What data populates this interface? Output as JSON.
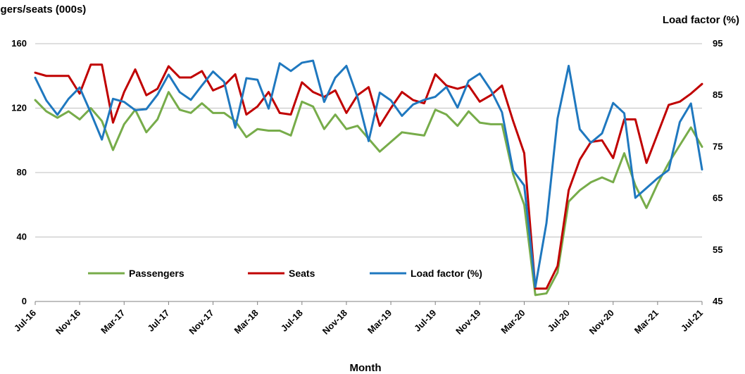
{
  "chart_data": {
    "type": "line",
    "xlabel": "Month",
    "ylabel_left": "Passengers/seats (000s)",
    "ylabel_right": "Load factor (%)",
    "ylim_left": [
      0,
      160
    ],
    "ylim_right": [
      45,
      95
    ],
    "yticks_left": [
      0,
      40,
      80,
      120,
      160
    ],
    "yticks_right": [
      45,
      55,
      65,
      75,
      85,
      95
    ],
    "grid": "horizontal",
    "legend_position": "bottom-left",
    "x": [
      "Jul-16",
      "Aug-16",
      "Sep-16",
      "Oct-16",
      "Nov-16",
      "Dec-16",
      "Jan-17",
      "Feb-17",
      "Mar-17",
      "Apr-17",
      "May-17",
      "Jun-17",
      "Jul-17",
      "Aug-17",
      "Sep-17",
      "Oct-17",
      "Nov-17",
      "Dec-17",
      "Jan-18",
      "Feb-18",
      "Mar-18",
      "Apr-18",
      "May-18",
      "Jun-18",
      "Jul-18",
      "Aug-18",
      "Sep-18",
      "Oct-18",
      "Nov-18",
      "Dec-18",
      "Jan-19",
      "Feb-19",
      "Mar-19",
      "Apr-19",
      "May-19",
      "Jun-19",
      "Jul-19",
      "Aug-19",
      "Sep-19",
      "Oct-19",
      "Nov-19",
      "Dec-19",
      "Jan-20",
      "Feb-20",
      "Mar-20",
      "Apr-20",
      "May-20",
      "Jun-20",
      "Jul-20",
      "Aug-20",
      "Sep-20",
      "Oct-20",
      "Nov-20",
      "Dec-20",
      "Jan-21",
      "Feb-21",
      "Mar-21",
      "Apr-21",
      "May-21",
      "Jun-21",
      "Jul-21"
    ],
    "x_tick_labels": [
      "Jul-16",
      "Nov-16",
      "Mar-17",
      "Jul-17",
      "Nov-17",
      "Mar-18",
      "Jul-18",
      "Nov-18",
      "Mar-19",
      "Jul-19",
      "Nov-19",
      "Mar-20",
      "Jul-20",
      "Nov-20",
      "Mar-21",
      "Jul-21"
    ],
    "series": [
      {
        "name": "Passengers",
        "axis": "left",
        "color": "#77AC4A",
        "values": [
          125,
          118,
          114,
          118,
          113,
          120,
          112,
          94,
          110,
          119,
          105,
          113,
          130,
          119,
          117,
          123,
          117,
          117,
          112,
          102,
          107,
          106,
          106,
          103,
          124,
          121,
          107,
          116,
          107,
          109,
          101,
          93,
          99,
          105,
          104,
          103,
          119,
          116,
          109,
          118,
          111,
          110,
          110,
          79,
          60,
          4,
          5,
          18,
          62,
          69,
          74,
          77,
          74,
          92,
          72,
          58,
          73,
          86,
          97,
          108,
          96
        ]
      },
      {
        "name": "Seats",
        "axis": "left",
        "color": "#C00000",
        "values": [
          142,
          140,
          140,
          140,
          129,
          147,
          147,
          111,
          130,
          144,
          128,
          132,
          146,
          139,
          139,
          143,
          131,
          134,
          141,
          116,
          121,
          130,
          117,
          116,
          136,
          130,
          127,
          131,
          117,
          128,
          133,
          109,
          120,
          130,
          125,
          123,
          141,
          134,
          132,
          134,
          124,
          128,
          134,
          112,
          92,
          8,
          8,
          22,
          69,
          88,
          99,
          100,
          89,
          113,
          113,
          86,
          104,
          122,
          124,
          129,
          135
        ]
      },
      {
        "name": "Load factor (%)",
        "axis": "right",
        "color": "#1F78BF",
        "values": [
          88.4,
          84,
          81.2,
          84.3,
          86.5,
          81.6,
          76.4,
          84.3,
          83.7,
          82.1,
          82.3,
          85.1,
          89,
          85.6,
          84.1,
          86.9,
          89.6,
          87.6,
          78.7,
          88.3,
          88,
          82.4,
          91.2,
          89.7,
          91.3,
          91.7,
          83.7,
          88.4,
          90.7,
          84.6,
          76.1,
          85.5,
          84,
          81,
          83.2,
          84.1,
          84.7,
          86.6,
          82.6,
          87.8,
          89.2,
          86,
          81.7,
          70.4,
          67.5,
          47.8,
          60.2,
          80.5,
          90.7,
          78.4,
          75.8,
          77.6,
          83.5,
          81.5,
          65.1,
          67,
          68.9,
          70.5,
          79.8,
          83.4,
          70.6
        ]
      }
    ]
  }
}
